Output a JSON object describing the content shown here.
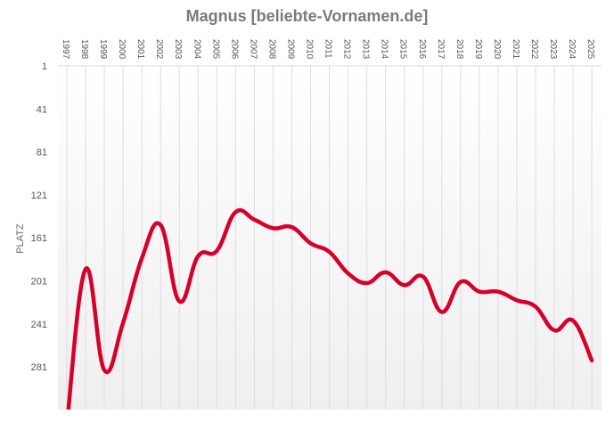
{
  "title": "Magnus [beliebte-Vornamen.de]",
  "colors": {
    "line": "#d6002a",
    "title": "#7a7a7a",
    "grid": "#dddddd",
    "plot_bg_top": "#ffffff",
    "plot_bg_bottom": "#efefef"
  },
  "chart_data": {
    "type": "line",
    "title": "Magnus [beliebte-Vornamen.de]",
    "xlabel": "",
    "ylabel": "PLATZ",
    "y_inverted": true,
    "ylim": [
      1,
      321
    ],
    "yticks": [
      1,
      41,
      81,
      121,
      161,
      201,
      241,
      281
    ],
    "x_axis_position": "top",
    "grid": "vertical",
    "categories": [
      "1997",
      "1998",
      "1999",
      "2000",
      "2001",
      "2002",
      "2003",
      "2004",
      "2005",
      "2006",
      "2007",
      "2008",
      "2009",
      "2010",
      "2011",
      "2012",
      "2013",
      "2014",
      "2015",
      "2016",
      "2017",
      "2018",
      "2019",
      "2020",
      "2021",
      "2022",
      "2023",
      "2024",
      "2025"
    ],
    "series": [
      {
        "name": "Magnus",
        "values": [
          335,
          190,
          284,
          240,
          180,
          149,
          220,
          178,
          173,
          137,
          144,
          152,
          151,
          166,
          174,
          194,
          203,
          193,
          205,
          197,
          230,
          202,
          211,
          211,
          219,
          225,
          247,
          238,
          275
        ]
      }
    ]
  }
}
